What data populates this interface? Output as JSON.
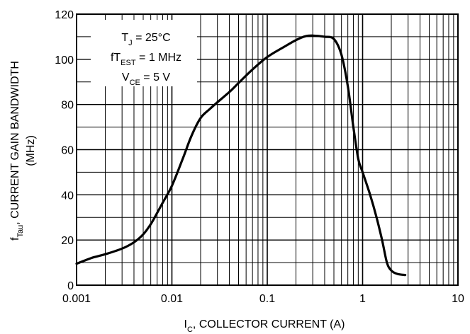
{
  "chart_data": {
    "type": "line",
    "x_scale": "log",
    "xlim": [
      0.001,
      10
    ],
    "ylim": [
      0,
      120
    ],
    "x_ticks": [
      {
        "value": 0.001,
        "label": "0.001"
      },
      {
        "value": 0.01,
        "label": "0.01"
      },
      {
        "value": 0.1,
        "label": "0.1"
      },
      {
        "value": 1,
        "label": "1"
      },
      {
        "value": 10,
        "label": "10"
      }
    ],
    "y_ticks": [
      {
        "value": 0,
        "label": "0"
      },
      {
        "value": 20,
        "label": "20"
      },
      {
        "value": 40,
        "label": "40"
      },
      {
        "value": 60,
        "label": "60"
      },
      {
        "value": 80,
        "label": "80"
      },
      {
        "value": 100,
        "label": "100"
      },
      {
        "value": 120,
        "label": "120"
      }
    ],
    "y_minor_step": 10,
    "grid": true,
    "xlabel": {
      "main": "I",
      "sub": "C",
      "rest": ", COLLECTOR CURRENT (A)"
    },
    "ylabel": {
      "main": "f",
      "sub": "Tau",
      "rest": ", CURRENT GAIN BANDWIDTH",
      "line2": "(MHz)"
    },
    "annotation": {
      "placement": "top-left",
      "lines": [
        {
          "main": "T",
          "sub": "J",
          "rest": " = 25°C"
        },
        {
          "main": "fT",
          "sub": "EST",
          "rest": " = 1 MHz"
        },
        {
          "main": "V",
          "sub": "CE",
          "rest": " = 5 V"
        }
      ]
    },
    "series": [
      {
        "color": "#000000",
        "points": [
          [
            0.001,
            9.5
          ],
          [
            0.0012,
            10.8
          ],
          [
            0.0015,
            12.3
          ],
          [
            0.002,
            13.7
          ],
          [
            0.003,
            16.2
          ],
          [
            0.004,
            19.0
          ],
          [
            0.005,
            22.5
          ],
          [
            0.006,
            27.0
          ],
          [
            0.007,
            32.0
          ],
          [
            0.008,
            36.5
          ],
          [
            0.01,
            44.0
          ],
          [
            0.013,
            56.0
          ],
          [
            0.016,
            66.0
          ],
          [
            0.02,
            74.0
          ],
          [
            0.025,
            78.0
          ],
          [
            0.03,
            81.0
          ],
          [
            0.04,
            85.5
          ],
          [
            0.05,
            89.5
          ],
          [
            0.07,
            95.5
          ],
          [
            0.1,
            101.0
          ],
          [
            0.15,
            105.5
          ],
          [
            0.2,
            108.5
          ],
          [
            0.25,
            110.2
          ],
          [
            0.3,
            110.5
          ],
          [
            0.4,
            110.0
          ],
          [
            0.5,
            109.0
          ],
          [
            0.6,
            102.0
          ],
          [
            0.7,
            88.0
          ],
          [
            0.8,
            70.0
          ],
          [
            0.9,
            56.0
          ],
          [
            1.0,
            50.0
          ],
          [
            1.2,
            40.0
          ],
          [
            1.4,
            30.0
          ],
          [
            1.6,
            20.0
          ],
          [
            1.8,
            10.0
          ],
          [
            2.0,
            6.5
          ],
          [
            2.3,
            5.0
          ],
          [
            2.8,
            4.5
          ]
        ]
      }
    ]
  }
}
